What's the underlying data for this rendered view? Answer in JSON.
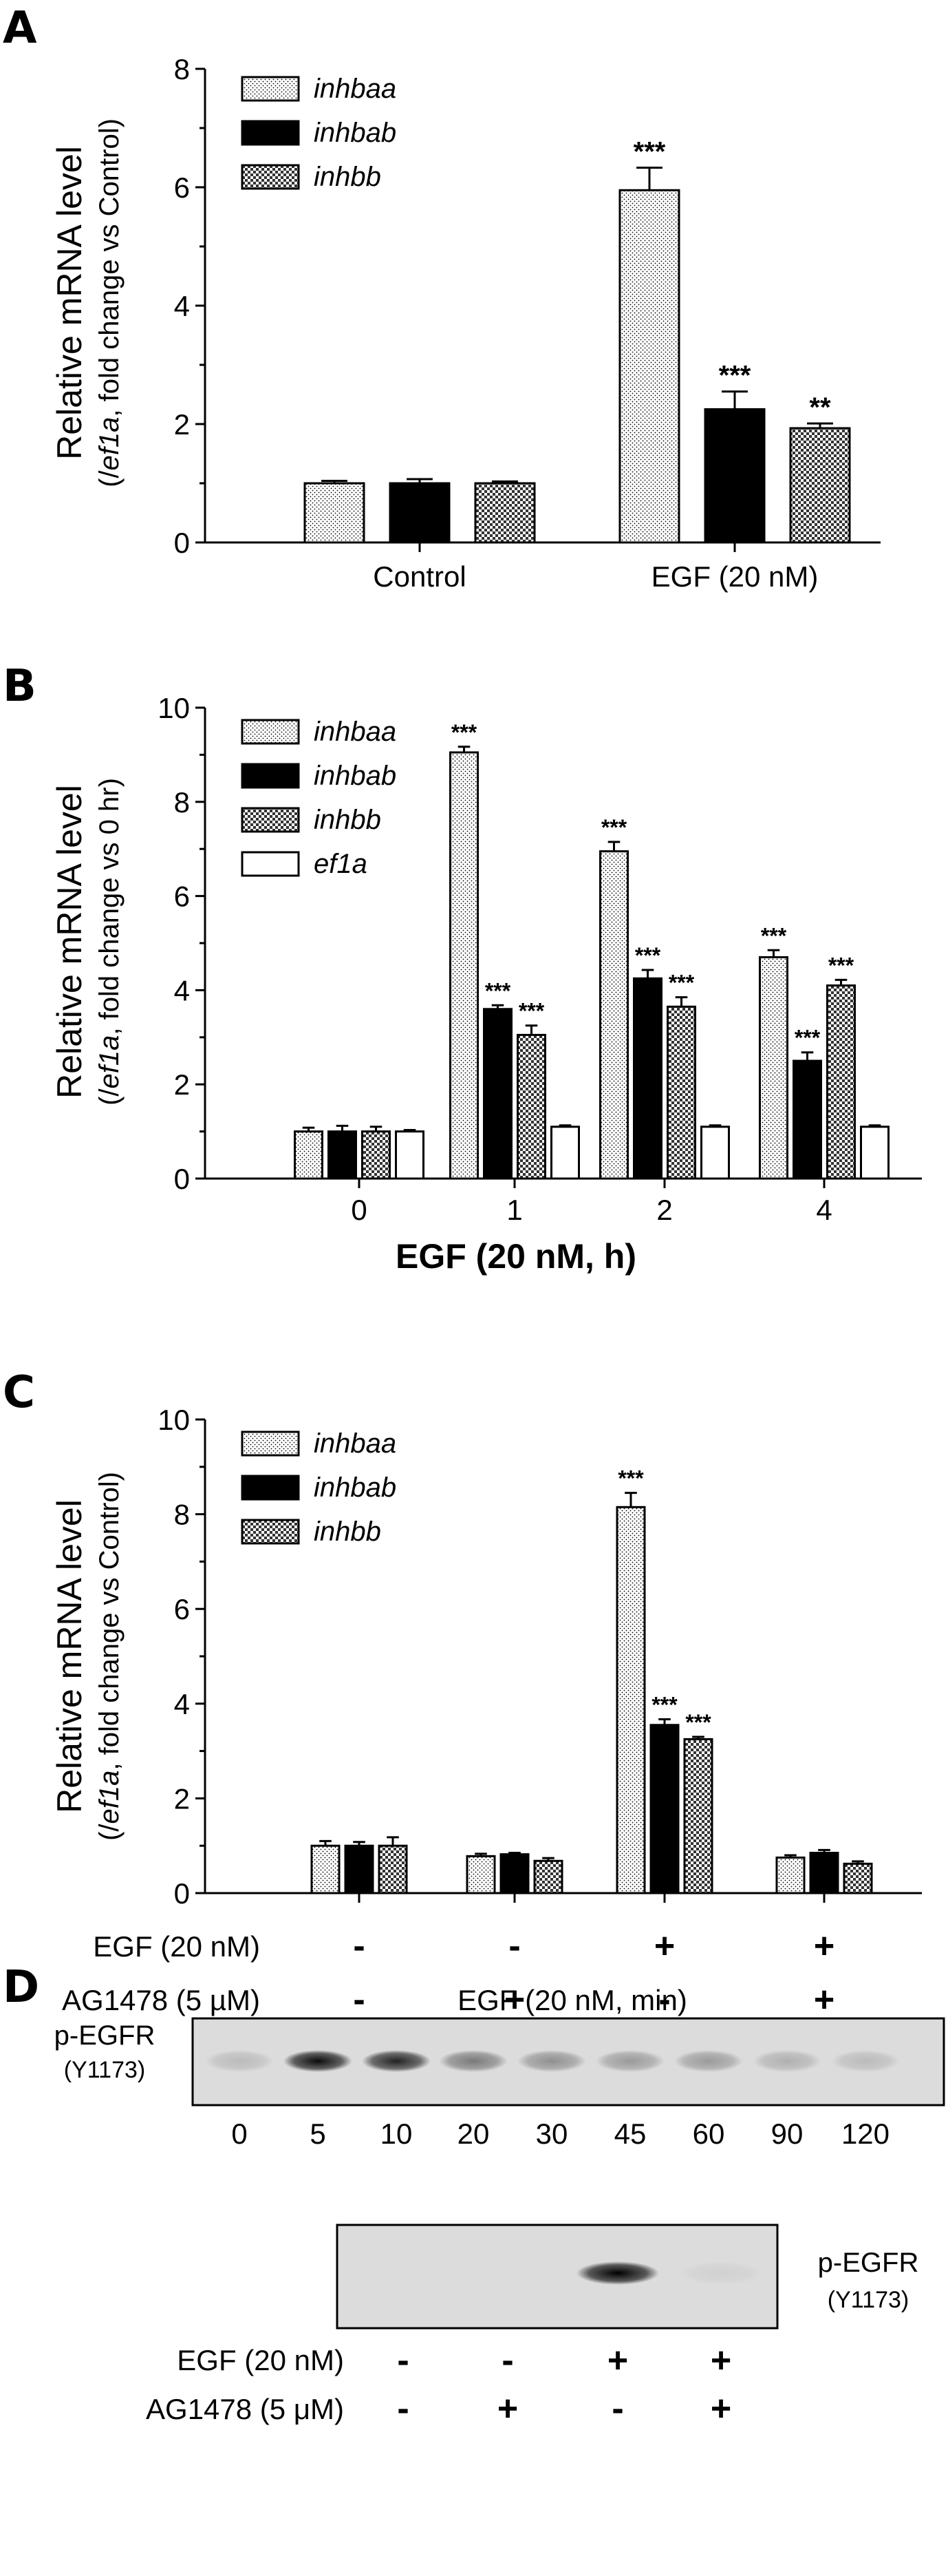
{
  "colors": {
    "ink": "#000000",
    "blot_bg": "#d9d9d9",
    "band": "#111111"
  },
  "panels": [
    {
      "letter": "A",
      "ylabel": "Relative mRNA level",
      "ylabel_parts": [
        "(/",
        "ef1a",
        ", fold change vs Control)"
      ],
      "legend": [
        "inhbaa",
        "inhbab",
        "inhbb"
      ]
    },
    {
      "letter": "B",
      "ylabel": "Relative mRNA level",
      "ylabel_parts": [
        "(/",
        "ef1a",
        ", fold change vs 0 hr)"
      ],
      "legend": [
        "inhbaa",
        "inhbab",
        "inhbb",
        "ef1a"
      ],
      "xlabel": "EGF (20 nM, h)"
    },
    {
      "letter": "C",
      "ylabel": "Relative mRNA level",
      "ylabel_parts": [
        "(/",
        "ef1a",
        ", fold change vs Control)"
      ],
      "legend": [
        "inhbaa",
        "inhbab",
        "inhbb"
      ],
      "rows": [
        {
          "label": "EGF (20 nM)",
          "signs": [
            "-",
            "-",
            "+",
            "+"
          ]
        },
        {
          "label": "AG1478 (5 µM)",
          "signs": [
            "-",
            "+",
            "-",
            "+"
          ]
        }
      ]
    }
  ],
  "chart_data": [
    {
      "type": "bar",
      "panel": "A",
      "categories": [
        "Control",
        "EGF (20 nM)"
      ],
      "ylim": [
        0,
        8
      ],
      "yticks": [
        0,
        2,
        4,
        6,
        8
      ],
      "series": [
        {
          "name": "inhbaa",
          "pattern": "dots",
          "values": [
            1.0,
            5.95
          ],
          "errors": [
            0.04,
            0.38
          ],
          "sig": [
            "",
            "***"
          ]
        },
        {
          "name": "inhbab",
          "pattern": "solid",
          "values": [
            1.0,
            2.25
          ],
          "errors": [
            0.07,
            0.3
          ],
          "sig": [
            "",
            "***"
          ]
        },
        {
          "name": "inhbb",
          "pattern": "check",
          "values": [
            1.0,
            1.93
          ],
          "errors": [
            0.03,
            0.08
          ],
          "sig": [
            "",
            "**"
          ]
        }
      ]
    },
    {
      "type": "bar",
      "panel": "B",
      "categories": [
        "0",
        "1",
        "2",
        "4"
      ],
      "xlabel": "EGF (20 nM, h)",
      "ylim": [
        0,
        10
      ],
      "yticks": [
        0,
        2,
        4,
        6,
        8,
        10
      ],
      "series": [
        {
          "name": "inhbaa",
          "pattern": "dots",
          "values": [
            1.0,
            9.05,
            6.95,
            4.7
          ],
          "errors": [
            0.08,
            0.12,
            0.2,
            0.15
          ],
          "sig": [
            "",
            "***",
            "***",
            "***"
          ]
        },
        {
          "name": "inhbab",
          "pattern": "solid",
          "values": [
            1.0,
            3.6,
            4.25,
            2.5
          ],
          "errors": [
            0.12,
            0.08,
            0.18,
            0.18
          ],
          "sig": [
            "",
            "***",
            "***",
            "***"
          ]
        },
        {
          "name": "inhbb",
          "pattern": "check",
          "values": [
            1.0,
            3.05,
            3.65,
            4.1
          ],
          "errors": [
            0.1,
            0.2,
            0.2,
            0.12
          ],
          "sig": [
            "",
            "***",
            "***",
            "***"
          ]
        },
        {
          "name": "ef1a",
          "pattern": "white",
          "values": [
            1.0,
            1.1,
            1.1,
            1.1
          ],
          "errors": [
            0.03,
            0.03,
            0.03,
            0.03
          ],
          "sig": [
            "",
            "",
            "",
            ""
          ]
        }
      ]
    },
    {
      "type": "bar",
      "panel": "C",
      "categories": [
        "-/-",
        "-/+",
        "+/-",
        "+/+"
      ],
      "ylim": [
        0,
        10
      ],
      "yticks": [
        0,
        2,
        4,
        6,
        8,
        10
      ],
      "series": [
        {
          "name": "inhbaa",
          "pattern": "dots",
          "values": [
            1.0,
            0.78,
            8.15,
            0.75
          ],
          "errors": [
            0.1,
            0.05,
            0.3,
            0.05
          ],
          "sig": [
            "",
            "",
            "***",
            ""
          ]
        },
        {
          "name": "inhbab",
          "pattern": "solid",
          "values": [
            1.0,
            0.82,
            3.55,
            0.85
          ],
          "errors": [
            0.08,
            0.03,
            0.12,
            0.06
          ],
          "sig": [
            "",
            "",
            "***",
            ""
          ]
        },
        {
          "name": "inhbb",
          "pattern": "check",
          "values": [
            1.0,
            0.68,
            3.25,
            0.62
          ],
          "errors": [
            0.18,
            0.06,
            0.05,
            0.05
          ],
          "sig": [
            "",
            "",
            "***",
            ""
          ]
        }
      ]
    }
  ],
  "blots": {
    "letter": "D",
    "top": {
      "title": "EGF (20 nM, min)",
      "label_main": "p-EGFR",
      "label_sub": "(Y1173)",
      "lanes": [
        "0",
        "5",
        "10",
        "20",
        "30",
        "45",
        "60",
        "90",
        "120"
      ],
      "band_intensity": [
        0.15,
        0.95,
        0.85,
        0.45,
        0.35,
        0.3,
        0.3,
        0.2,
        0.15
      ]
    },
    "bottom": {
      "label_main": "p-EGFR",
      "label_sub": "(Y1173)",
      "band_intensity": [
        0.0,
        0.0,
        1.0,
        0.05
      ],
      "rows": [
        {
          "label": "EGF (20 nM)",
          "signs": [
            "-",
            "-",
            "+",
            "+"
          ]
        },
        {
          "label": "AG1478 (5 μM)",
          "signs": [
            "-",
            "+",
            "-",
            "+"
          ]
        }
      ]
    }
  }
}
